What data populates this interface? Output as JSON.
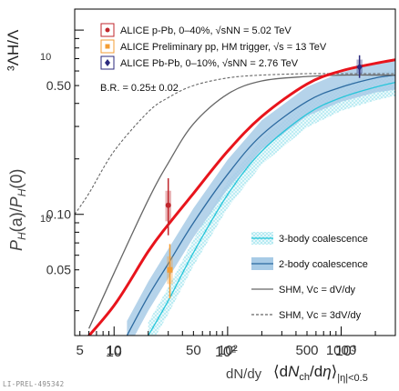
{
  "chart_data": {
    "type": "line",
    "y_axis_left_label_parts": [
      "P",
      "H",
      "(a)/",
      "P",
      "H",
      "(0)"
    ],
    "y_axis_right_label": "³ΛH/Λ",
    "x_axis_label_inner": "dN/dy",
    "x_axis_label_outer": "⟨dN_ch/dη⟩_|η|<0.5",
    "x_scale": "log",
    "y_scale": "log",
    "xlim": [
      4.5,
      3000
    ],
    "ylim": [
      0.022,
      1.3
    ],
    "x_ticks": [
      {
        "value": 5,
        "label": "5"
      },
      {
        "value": 10,
        "label": "10"
      },
      {
        "value": 50,
        "label": "50"
      },
      {
        "value": 100,
        "label": "10²"
      },
      {
        "value": 500,
        "label": "500"
      },
      {
        "value": 1000,
        "label": "1000"
      }
    ],
    "y_ticks": [
      {
        "value": 0.05,
        "label": "0.05"
      },
      {
        "value": 0.1,
        "label": "0.10"
      },
      {
        "value": 0.5,
        "label": "0.50"
      }
    ],
    "overlay_label_fragments": [
      "10",
      "10²",
      "10³"
    ],
    "series": [
      {
        "name": "3-body coalescence",
        "style": "band-hatched",
        "color": "#26c6da",
        "x": [
          20,
          30,
          50,
          100,
          200,
          500,
          1000,
          2000,
          3000
        ],
        "y": [
          0.022,
          0.034,
          0.062,
          0.128,
          0.22,
          0.35,
          0.43,
          0.49,
          0.52
        ],
        "band_factor": 1.18
      },
      {
        "name": "2-body coalescence",
        "style": "band-solid",
        "color": "#2c6aa0",
        "band_color": "#a8cbe6",
        "x": [
          13,
          20,
          30,
          50,
          100,
          200,
          500,
          1000,
          2000,
          3000
        ],
        "y": [
          0.022,
          0.036,
          0.054,
          0.09,
          0.165,
          0.27,
          0.41,
          0.49,
          0.55,
          0.57
        ],
        "band_factor": 1.2
      },
      {
        "name": "SHM, Vc = dV/dy",
        "style": "line",
        "color": "#666666",
        "x": [
          6,
          10,
          20,
          30,
          50,
          100,
          200,
          500,
          1000,
          3000
        ],
        "y": [
          0.024,
          0.048,
          0.12,
          0.19,
          0.31,
          0.45,
          0.53,
          0.56,
          0.57,
          0.57
        ]
      },
      {
        "name": "SHM, Vc = 3dV/dy",
        "style": "dashed",
        "color": "#666666",
        "x": [
          4.5,
          6,
          10,
          20,
          30,
          50,
          100,
          200,
          500,
          1000,
          3000
        ],
        "y": [
          0.1,
          0.13,
          0.22,
          0.36,
          0.43,
          0.5,
          0.55,
          0.57,
          0.58,
          0.58,
          0.58
        ]
      },
      {
        "name": "red curve",
        "style": "line-thick",
        "color": "#e8141c",
        "x": [
          4.5,
          10,
          20,
          30,
          50,
          100,
          200,
          500,
          1000,
          2000,
          3000
        ],
        "y": [
          0.018,
          0.032,
          0.063,
          0.088,
          0.13,
          0.22,
          0.34,
          0.51,
          0.6,
          0.66,
          0.69
        ]
      }
    ],
    "points": [
      {
        "name": "ALICE p-Pb, 0–40%, √sNN = 5.02 TeV",
        "marker": "circle",
        "color": "#c0272d",
        "x": 30,
        "y": 0.112,
        "err_lo": 0.035,
        "err_hi": 0.045,
        "sys_lo": 0.02,
        "sys_hi": 0.022
      },
      {
        "name": "ALICE Preliminary pp, HM trigger, √s = 13 TeV",
        "marker": "square",
        "color": "#f39c34",
        "x": 31,
        "y": 0.05,
        "err_lo": 0.015,
        "err_hi": 0.019,
        "sys_lo": 0.008,
        "sys_hi": 0.009
      },
      {
        "name": "ALICE Pb-Pb, 0–10%, √sNN = 2.76 TeV",
        "marker": "diamond",
        "color": "#2b2a7e",
        "x": 1450,
        "y": 0.63,
        "err_lo": 0.08,
        "err_hi": 0.1,
        "sys_lo": 0.05,
        "sys_hi": 0.06
      }
    ],
    "legend_top": [
      {
        "text": "ALICE p-Pb, 0–40%, √sNN = 5.02 TeV",
        "marker": "circle",
        "color": "#c0272d"
      },
      {
        "text": "ALICE Preliminary pp, HM trigger, √s = 13 TeV",
        "marker": "square",
        "color": "#f39c34"
      },
      {
        "text": "ALICE Pb-Pb, 0–10%, √sNN = 2.76 TeV",
        "marker": "diamond",
        "color": "#2b2a7e"
      }
    ],
    "legend_bottom": [
      {
        "text": "3-body coalescence",
        "style": "band-hatched",
        "color": "#26c6da"
      },
      {
        "text": "2-body coalescence",
        "style": "band-solid",
        "color": "#2c6aa0"
      },
      {
        "text": "SHM, Vc = dV/dy",
        "style": "line",
        "color": "#666666"
      },
      {
        "text": "SHM, Vc = 3dV/dy",
        "style": "dashed",
        "color": "#666666"
      }
    ],
    "annotation": "B.R. = 0.25± 0.02",
    "preliminary_id": "LI-PREL-495342",
    "grid": false
  }
}
